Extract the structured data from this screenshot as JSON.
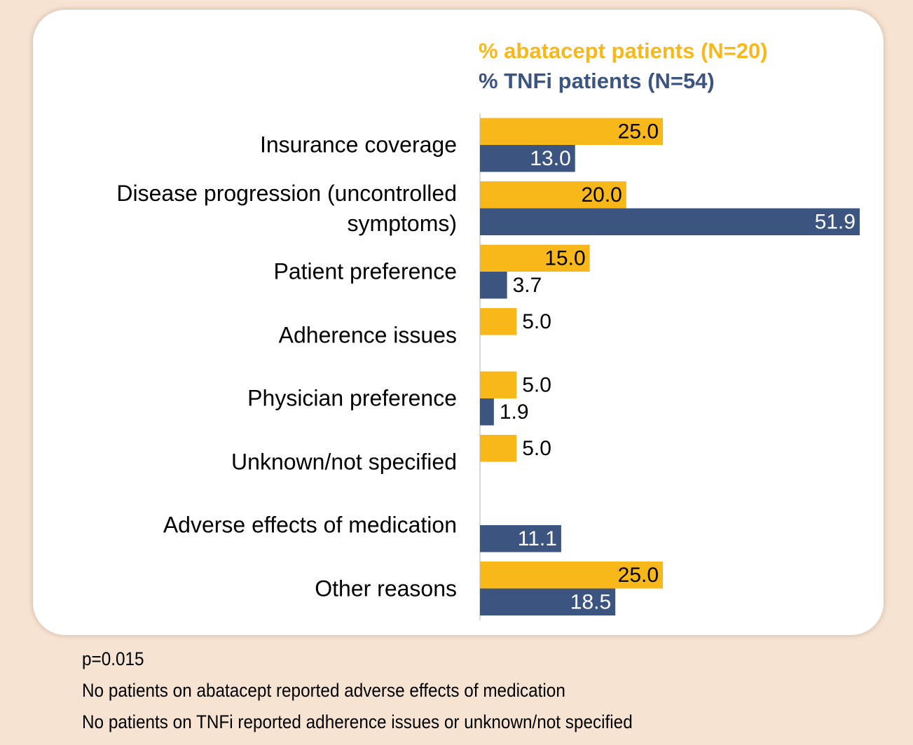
{
  "chart_data": {
    "type": "hbar",
    "categories": [
      "Insurance coverage",
      "Disease progression (uncontrolled symptoms)",
      "Patient preference",
      "Adherence issues",
      "Physician preference",
      "Unknown/not specified",
      "Adverse effects of medication",
      "Other reasons"
    ],
    "series": [
      {
        "name": "% abatacept patients (N=20)",
        "color": "#f9b81a",
        "values": [
          25,
          20,
          15,
          5,
          5,
          5,
          null,
          25
        ],
        "value_labels": [
          "25.0",
          "20.0",
          "15.0",
          "5.0",
          "5.0",
          "5.0",
          null,
          "25.0"
        ]
      },
      {
        "name": "% TNFi patients (N=54)",
        "color": "#3b5580",
        "values": [
          13,
          51.9,
          3.7,
          null,
          1.9,
          null,
          11.1,
          18.5
        ],
        "value_labels": [
          "13.0",
          "51.9",
          "3.7",
          null,
          "1.9",
          null,
          "11.1",
          "18.5"
        ]
      }
    ],
    "xlim": [
      0,
      52
    ],
    "notes": [
      "p=0.015",
      "No patients on abatacept reported adverse effects of medication",
      "No patients on TNFi reported adherence issues or unknown/not specified"
    ]
  }
}
